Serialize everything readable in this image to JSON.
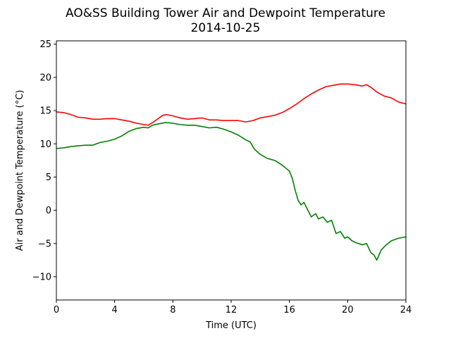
{
  "chart_data": {
    "type": "line",
    "title": "AO&SS Building Tower Air and Dewpoint Temperature",
    "subtitle": "2014-10-25",
    "xlabel": "Time (UTC)",
    "ylabel": "Air and Dewpoint Temperature (°C)",
    "xlim": [
      0,
      24
    ],
    "ylim": [
      -13.5,
      25.5
    ],
    "xticks": [
      0,
      4,
      8,
      12,
      16,
      20,
      24
    ],
    "yticks": [
      -10,
      -5,
      0,
      5,
      10,
      15,
      20,
      25
    ],
    "grid": false,
    "legend": "none",
    "series": [
      {
        "color": "#ff0000",
        "x": [
          0,
          0.5,
          1,
          1.5,
          2,
          2.5,
          3,
          3.5,
          4,
          4.5,
          5,
          5.5,
          6,
          6.3,
          6.6,
          7,
          7.3,
          7.6,
          8,
          8.5,
          9,
          9.5,
          10,
          10.5,
          11,
          11.5,
          12,
          12.5,
          13,
          13.5,
          14,
          14.5,
          15,
          15.5,
          16,
          16.5,
          17,
          17.5,
          18,
          18.5,
          19,
          19.5,
          20,
          20.5,
          21,
          21.3,
          21.6,
          22,
          22.5,
          23,
          23.5,
          24
        ],
        "y": [
          14.8,
          14.7,
          14.4,
          14.0,
          13.9,
          13.7,
          13.7,
          13.8,
          13.8,
          13.6,
          13.4,
          13.1,
          12.9,
          12.8,
          13.2,
          13.8,
          14.3,
          14.4,
          14.2,
          13.9,
          13.7,
          13.8,
          13.9,
          13.6,
          13.6,
          13.5,
          13.5,
          13.5,
          13.3,
          13.5,
          13.9,
          14.1,
          14.3,
          14.7,
          15.3,
          16.0,
          16.8,
          17.5,
          18.1,
          18.6,
          18.8,
          19.0,
          19.0,
          18.9,
          18.7,
          18.9,
          18.5,
          17.8,
          17.2,
          16.9,
          16.3,
          16.0
        ]
      },
      {
        "color": "#008000",
        "x": [
          0,
          0.5,
          1,
          1.5,
          2,
          2.5,
          3,
          3.5,
          4,
          4.5,
          5,
          5.5,
          6,
          6.3,
          6.6,
          7,
          7.5,
          8,
          8.5,
          9,
          9.5,
          10,
          10.5,
          11,
          11.5,
          12,
          12.5,
          13,
          13.3,
          13.6,
          14,
          14.5,
          15,
          15.5,
          16,
          16.2,
          16.4,
          16.6,
          16.8,
          17,
          17.2,
          17.5,
          17.8,
          18,
          18.3,
          18.6,
          18.9,
          19.2,
          19.5,
          19.8,
          20,
          20.3,
          20.6,
          21,
          21.3,
          21.6,
          21.8,
          22,
          22.3,
          22.6,
          23,
          23.5,
          24
        ],
        "y": [
          9.3,
          9.4,
          9.6,
          9.7,
          9.8,
          9.8,
          10.2,
          10.4,
          10.7,
          11.2,
          11.9,
          12.3,
          12.5,
          12.4,
          12.8,
          13.0,
          13.2,
          13.1,
          12.9,
          12.8,
          12.8,
          12.6,
          12.4,
          12.5,
          12.2,
          11.8,
          11.3,
          10.6,
          10.3,
          9.2,
          8.4,
          7.8,
          7.5,
          6.8,
          5.9,
          4.8,
          3.0,
          1.5,
          0.8,
          1.2,
          0.3,
          -1.0,
          -0.5,
          -1.3,
          -1.0,
          -1.8,
          -1.5,
          -3.5,
          -3.2,
          -4.2,
          -4.0,
          -4.6,
          -4.9,
          -5.2,
          -5.0,
          -6.4,
          -6.7,
          -7.5,
          -6.0,
          -5.3,
          -4.6,
          -4.2,
          -4.0
        ]
      }
    ]
  }
}
